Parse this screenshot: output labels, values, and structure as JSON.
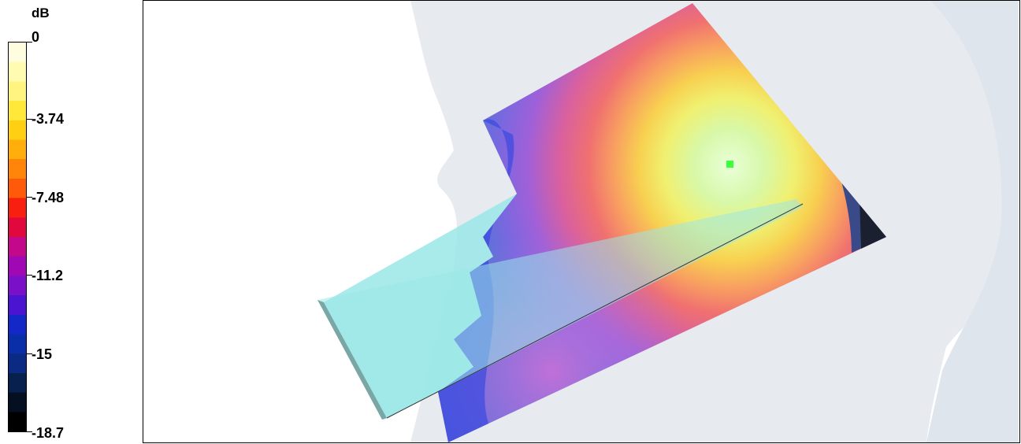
{
  "legend": {
    "unit": "dB",
    "ticks": [
      "0",
      "-3.74",
      "-7.48",
      "-11.2",
      "-15",
      "-18.7"
    ],
    "min": -18.7,
    "max": 0,
    "colors": [
      "#fffde0",
      "#fffbb0",
      "#fff480",
      "#ffe83a",
      "#ffcf14",
      "#ffae0c",
      "#ff850a",
      "#ff5a0a",
      "#f81e10",
      "#e0083c",
      "#c4088c",
      "#a008b4",
      "#7a10c8",
      "#4a14d0",
      "#1428c8",
      "#0a2ea8",
      "#0a2a84",
      "#08204e",
      "#041022",
      "#000000"
    ]
  },
  "scene": {
    "head_color": "#e7ebf0",
    "device_color": "#9ae8e8",
    "marker_color": "#3cff3c"
  }
}
